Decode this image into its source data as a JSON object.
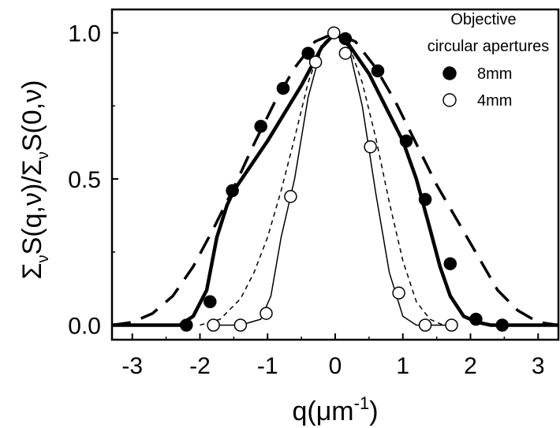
{
  "chart_data": {
    "type": "scatter",
    "title": "",
    "xlabel": "q(μm",
    "xlabel_sup": "-1",
    "xlabel_end": ")",
    "ylabel": "Σ S(q,ν)/Σ S(0,ν)",
    "ylabel_parts": {
      "sigma1": "Σ",
      "sub1": "ν",
      "mid": "S(q,ν)/",
      "sigma2": "Σ",
      "sub2": "ν",
      "end": "S(0,ν)"
    },
    "xlim": [
      -3.3,
      3.3
    ],
    "ylim": [
      -0.05,
      1.08
    ],
    "xticks": [
      -3,
      -2,
      -1,
      0,
      1,
      2,
      3
    ],
    "xtick_labels": [
      "-3",
      "-2",
      "-1",
      "0",
      "1",
      "2",
      "3"
    ],
    "yticks": [
      0.0,
      0.5,
      1.0
    ],
    "ytick_labels": [
      "0.0",
      "0.5",
      "1.0"
    ],
    "grid": false,
    "legend": {
      "title_lines": [
        "Objective",
        "circular apertures"
      ],
      "placement": "top-right",
      "entries": [
        {
          "label": "8mm",
          "marker": "filled-circle"
        },
        {
          "label": "4mm",
          "marker": "open-circle"
        }
      ]
    },
    "series": [
      {
        "name": "8mm",
        "kind": "points",
        "marker": "filled-circle",
        "x": [
          -2.2,
          -1.85,
          -1.52,
          -1.1,
          -0.77,
          -0.4,
          0.15,
          0.63,
          1.05,
          1.33,
          1.7,
          2.08,
          2.47
        ],
        "y": [
          0.0,
          0.08,
          0.46,
          0.68,
          0.81,
          0.93,
          0.98,
          0.87,
          0.63,
          0.43,
          0.21,
          0.02,
          0.0
        ]
      },
      {
        "name": "4mm",
        "kind": "points",
        "marker": "open-circle",
        "x": [
          -1.8,
          -1.4,
          -1.02,
          -0.66,
          -0.29,
          -0.02,
          0.15,
          0.52,
          0.94,
          1.33,
          1.72
        ],
        "y": [
          0.0,
          0.0,
          0.04,
          0.44,
          0.9,
          1.0,
          0.93,
          0.61,
          0.11,
          0.0,
          0.0
        ]
      },
      {
        "kind": "line",
        "style": "thick-solid",
        "x": [
          -3.3,
          -2.3,
          -2.1,
          -1.9,
          -1.75,
          -1.6,
          -1.5,
          -1.0,
          -0.5,
          -0.2,
          0.0,
          0.2,
          0.5,
          1.0,
          1.2,
          1.4,
          1.55,
          1.7,
          1.9,
          2.1,
          2.3,
          3.3
        ],
        "y": [
          0.0,
          0.0,
          0.03,
          0.12,
          0.3,
          0.41,
          0.46,
          0.63,
          0.82,
          0.95,
          1.0,
          0.96,
          0.86,
          0.63,
          0.5,
          0.33,
          0.2,
          0.1,
          0.03,
          0.01,
          0.0,
          0.0
        ]
      },
      {
        "kind": "line",
        "style": "thin-solid",
        "x": [
          -1.8,
          -1.4,
          -1.1,
          -0.95,
          -0.8,
          -0.6,
          -0.4,
          -0.2,
          0.0,
          0.2,
          0.4,
          0.6,
          0.8,
          1.0,
          1.2,
          1.4,
          1.7
        ],
        "y": [
          0.0,
          0.0,
          0.02,
          0.1,
          0.3,
          0.5,
          0.78,
          0.95,
          1.0,
          0.95,
          0.75,
          0.45,
          0.18,
          0.03,
          0.0,
          0.0,
          0.0
        ]
      },
      {
        "kind": "line",
        "style": "thin-dashed",
        "x": [
          -2.0,
          -1.7,
          -1.4,
          -1.2,
          -1.0,
          -0.8,
          -0.6,
          -0.4,
          -0.2,
          0.0,
          0.2,
          0.4,
          0.6,
          0.8,
          1.0,
          1.2,
          1.4,
          1.6,
          1.7
        ],
        "y": [
          0.0,
          0.02,
          0.09,
          0.18,
          0.3,
          0.46,
          0.64,
          0.83,
          0.96,
          1.0,
          0.96,
          0.83,
          0.64,
          0.42,
          0.22,
          0.08,
          0.02,
          0.0,
          0.0
        ]
      },
      {
        "kind": "line",
        "style": "thick-dashed",
        "x": [
          -3.3,
          -3.0,
          -2.7,
          -2.4,
          -2.1,
          -1.8,
          -1.5,
          -1.2,
          -0.9,
          -0.6,
          -0.3,
          0.0,
          0.3,
          0.6,
          0.9,
          1.2,
          1.5,
          1.8,
          2.1,
          2.4,
          2.7,
          3.0,
          3.3
        ],
        "y": [
          0.0,
          0.01,
          0.04,
          0.1,
          0.2,
          0.33,
          0.47,
          0.62,
          0.76,
          0.88,
          0.97,
          1.0,
          0.97,
          0.88,
          0.76,
          0.62,
          0.48,
          0.36,
          0.24,
          0.12,
          0.05,
          0.01,
          0.0
        ]
      }
    ]
  }
}
